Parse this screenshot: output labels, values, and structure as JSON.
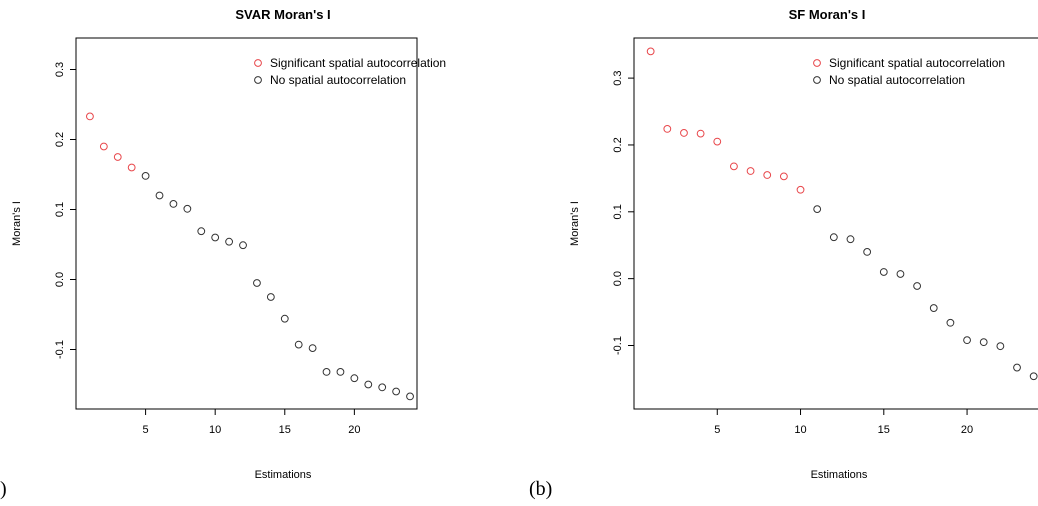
{
  "chart_data": [
    {
      "type": "scatter",
      "title": "SVAR Moran's I",
      "xlabel": "Estimations",
      "ylabel": "Moran's I",
      "xlim": [
        0,
        24.5
      ],
      "ylim": [
        -0.185,
        0.345
      ],
      "xticks": [
        5,
        10,
        15,
        20
      ],
      "yticks": [
        -0.1,
        0.0,
        0.1,
        0.2,
        0.3
      ],
      "ytick_labels": [
        "-0.1",
        "0.0",
        "0.1",
        "0.2",
        "0.3"
      ],
      "legend": {
        "position": "top-right",
        "entries": [
          {
            "label": "Significant spatial autocorrelation",
            "color": "#e8474b"
          },
          {
            "label": "No spatial autocorrelation",
            "color": "#333333"
          }
        ]
      },
      "x": [
        1,
        2,
        3,
        4,
        5,
        6,
        7,
        8,
        9,
        10,
        11,
        12,
        13,
        14,
        15,
        16,
        17,
        18,
        19,
        20,
        21,
        22,
        23,
        24
      ],
      "y": [
        0.233,
        0.19,
        0.175,
        0.16,
        0.148,
        0.12,
        0.108,
        0.101,
        0.069,
        0.06,
        0.054,
        0.049,
        -0.005,
        -0.025,
        -0.056,
        -0.093,
        -0.098,
        -0.132,
        -0.132,
        -0.141,
        -0.15,
        -0.154,
        -0.16,
        -0.167
      ],
      "significant": [
        true,
        true,
        true,
        true,
        false,
        false,
        false,
        false,
        false,
        false,
        false,
        false,
        false,
        false,
        false,
        false,
        false,
        false,
        false,
        false,
        false,
        false,
        false,
        false
      ],
      "panel_label": ")"
    },
    {
      "type": "scatter",
      "title": "SF Moran's I",
      "xlabel": "Estimations",
      "ylabel": "Moran's I",
      "xlim": [
        0,
        24.5
      ],
      "ylim": [
        -0.195,
        0.36
      ],
      "xticks": [
        5,
        10,
        15,
        20
      ],
      "yticks": [
        -0.1,
        0.0,
        0.1,
        0.2,
        0.3
      ],
      "ytick_labels": [
        "-0.1",
        "0.0",
        "0.1",
        "0.2",
        "0.3"
      ],
      "legend": {
        "position": "top-right",
        "entries": [
          {
            "label": "Significant spatial autocorrelation",
            "color": "#e8474b"
          },
          {
            "label": "No spatial autocorrelation",
            "color": "#333333"
          }
        ]
      },
      "x": [
        1,
        2,
        3,
        4,
        5,
        6,
        7,
        8,
        9,
        10,
        11,
        12,
        13,
        14,
        15,
        16,
        17,
        18,
        19,
        20,
        21,
        22,
        23,
        24
      ],
      "y": [
        0.34,
        0.224,
        0.218,
        0.217,
        0.205,
        0.168,
        0.161,
        0.155,
        0.153,
        0.133,
        0.104,
        0.062,
        0.059,
        0.04,
        0.01,
        0.007,
        -0.011,
        -0.044,
        -0.066,
        -0.092,
        -0.095,
        -0.101,
        -0.133,
        -0.146
      ],
      "significant": [
        true,
        true,
        true,
        true,
        true,
        true,
        true,
        true,
        true,
        true,
        false,
        false,
        false,
        false,
        false,
        false,
        false,
        false,
        false,
        false,
        false,
        false,
        false,
        false
      ],
      "panel_label": "(b)"
    }
  ]
}
